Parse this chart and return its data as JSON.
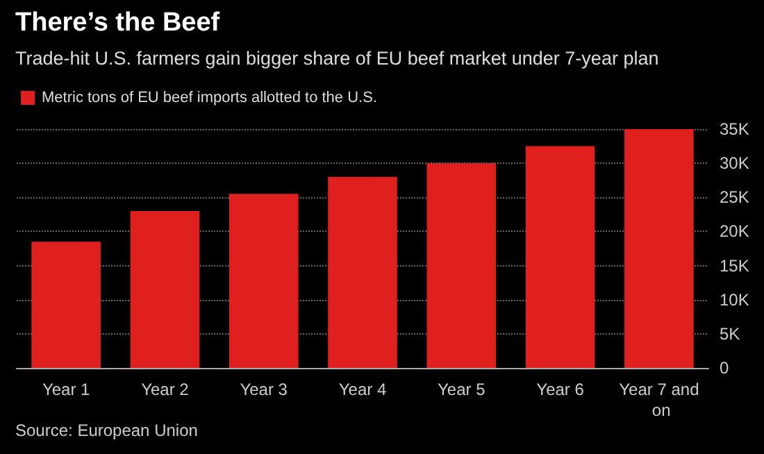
{
  "chart_data": {
    "type": "bar",
    "title": "There’s the Beef",
    "subtitle": "Trade-hit U.S. farmers gain bigger share of EU beef market under 7-year plan",
    "categories": [
      "Year 1",
      "Year 2",
      "Year 3",
      "Year 4",
      "Year 5",
      "Year 6",
      "Year 7 and on"
    ],
    "series": [
      {
        "name": "Metric tons of EU beef imports allotted to the U.S.",
        "color": "#e0201f",
        "values": [
          18500,
          23000,
          25500,
          28000,
          30000,
          32500,
          35000
        ]
      }
    ],
    "ylim": [
      0,
      35000
    ],
    "yticks": [
      0,
      {
        "value": 5000,
        "label": "5K"
      },
      {
        "value": 10000,
        "label": "10K"
      },
      {
        "value": 15000,
        "label": "15K"
      },
      {
        "value": 20000,
        "label": "20K"
      },
      {
        "value": 25000,
        "label": "25K"
      },
      {
        "value": 30000,
        "label": "30K"
      },
      {
        "value": 35000,
        "label": "35K"
      }
    ],
    "grid": "y",
    "legend": "top left",
    "annotations": [
      "Source: European Union"
    ]
  }
}
